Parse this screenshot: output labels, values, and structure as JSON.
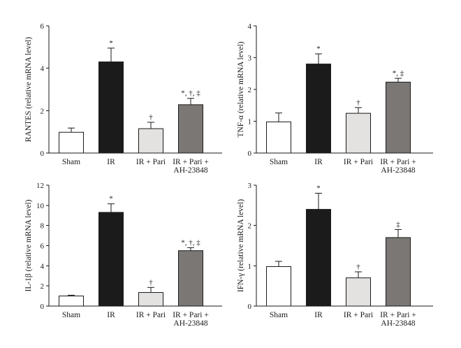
{
  "chart_data": [
    {
      "type": "bar",
      "ylabel": "RANTES (relative mRNA level)",
      "ylim": [
        0,
        6
      ],
      "yticks": [
        "0",
        "2",
        "4",
        "6"
      ],
      "categories": [
        [
          "Sham"
        ],
        [
          "IR"
        ],
        [
          "IR + Pari"
        ],
        [
          "IR + Pari +",
          "AH-23848"
        ]
      ],
      "values": [
        0.98,
        4.3,
        1.15,
        2.28
      ],
      "errors": [
        0.2,
        0.65,
        0.3,
        0.3
      ],
      "annotations": [
        "",
        "*",
        "†",
        "*, †, ‡"
      ],
      "colors": [
        "#ffffff",
        "#1b1b1b",
        "#e4e1e1",
        "#7a7775"
      ]
    },
    {
      "type": "bar",
      "ylabel": "TNF-α (relative mRNA level)",
      "ylim": [
        0,
        4
      ],
      "yticks": [
        "0",
        "1",
        "2",
        "3",
        "4"
      ],
      "categories": [
        [
          "Sham"
        ],
        [
          "IR"
        ],
        [
          "IR + Pari"
        ],
        [
          "IR + Pari +",
          "AH-23848"
        ]
      ],
      "values": [
        0.98,
        2.8,
        1.25,
        2.23
      ],
      "errors": [
        0.28,
        0.32,
        0.18,
        0.12
      ],
      "annotations": [
        "",
        "*",
        "†",
        "*, ‡"
      ],
      "colors": [
        "#ffffff",
        "#1b1b1b",
        "#e4e1e1",
        "#7a7775"
      ]
    },
    {
      "type": "bar",
      "ylabel": "IL-1β (relative mRNA level)",
      "ylim": [
        0,
        12
      ],
      "yticks": [
        "0",
        "2",
        "4",
        "6",
        "8",
        "10",
        "12"
      ],
      "categories": [
        [
          "Sham"
        ],
        [
          "IR"
        ],
        [
          "IR + Pari"
        ],
        [
          "IR + Pari +",
          "AH-23848"
        ]
      ],
      "values": [
        1.0,
        9.3,
        1.35,
        5.5
      ],
      "errors": [
        0.08,
        0.85,
        0.5,
        0.3
      ],
      "annotations": [
        "",
        "*",
        "†",
        "*, †, ‡"
      ],
      "colors": [
        "#ffffff",
        "#1b1b1b",
        "#e4e1e1",
        "#7a7775"
      ]
    },
    {
      "type": "bar",
      "ylabel": "IFN-γ (relative mRNA level)",
      "ylim": [
        0,
        3
      ],
      "yticks": [
        "0",
        "1",
        "2",
        "3"
      ],
      "categories": [
        [
          "Sham"
        ],
        [
          "IR"
        ],
        [
          "IR + Pari"
        ],
        [
          "IR + Pari +",
          "AH-23848"
        ]
      ],
      "values": [
        0.98,
        2.4,
        0.7,
        1.7
      ],
      "errors": [
        0.13,
        0.4,
        0.15,
        0.2
      ],
      "annotations": [
        "",
        "*",
        "†",
        "‡"
      ],
      "colors": [
        "#ffffff",
        "#1b1b1b",
        "#e4e1e1",
        "#7a7775"
      ]
    }
  ]
}
